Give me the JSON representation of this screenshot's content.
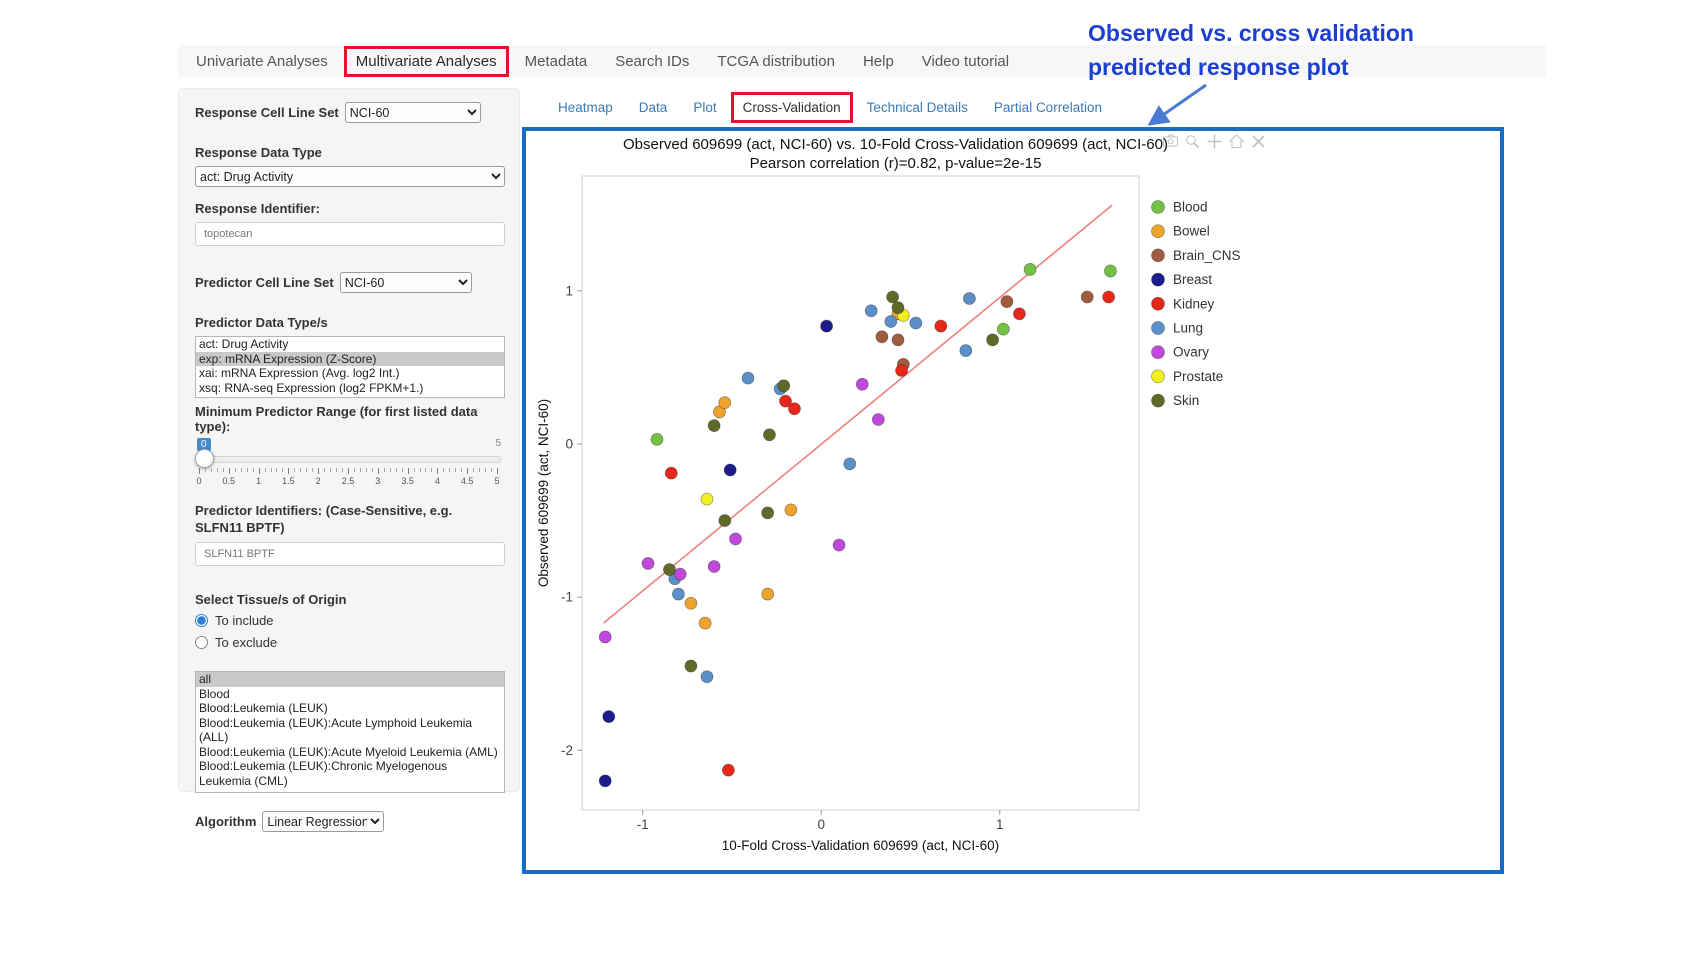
{
  "nav": {
    "items": [
      {
        "label": "Univariate Analyses",
        "active": false,
        "boxed": false
      },
      {
        "label": "Multivariate Analyses",
        "active": true,
        "boxed": true
      },
      {
        "label": "Metadata",
        "active": false,
        "boxed": false
      },
      {
        "label": "Search IDs",
        "active": false,
        "boxed": false
      },
      {
        "label": "TCGA distribution",
        "active": false,
        "boxed": false
      },
      {
        "label": "Help",
        "active": false,
        "boxed": false
      },
      {
        "label": "Video tutorial",
        "active": false,
        "boxed": false
      }
    ]
  },
  "annotation": {
    "line1": "Observed vs. cross validation",
    "line2": "predicted response plot",
    "color": "#1c3fd3",
    "arrow_color": "#4a7bd4"
  },
  "highlight": {
    "red_box_color": "#e8112d",
    "plot_box_color": "#1a6bc2"
  },
  "sidebar": {
    "response_cell_line_set": {
      "label": "Response Cell Line Set",
      "value": "NCI-60"
    },
    "response_data_type": {
      "label": "Response Data Type",
      "value": "act: Drug Activity"
    },
    "response_identifier": {
      "label": "Response Identifier:",
      "value": "topotecan"
    },
    "predictor_cell_line_set": {
      "label": "Predictor Cell Line Set",
      "value": "NCI-60"
    },
    "predictor_data_types": {
      "label": "Predictor Data Type/s",
      "options": [
        "act: Drug Activity",
        "exp: mRNA Expression (Z-Score)",
        "xai: mRNA Expression (Avg. log2 Int.)",
        "xsq: RNA-seq Expression (log2 FPKM+1.)"
      ],
      "selected": "exp: mRNA Expression (Z-Score)"
    },
    "min_predictor_range": {
      "label": "Minimum Predictor Range (for first listed data type):",
      "value": "0",
      "max": "5",
      "ticks": [
        "0",
        "0.5",
        "1",
        "1.5",
        "2",
        "2.5",
        "3",
        "3.5",
        "4",
        "4.5",
        "5"
      ]
    },
    "predictor_identifiers": {
      "label": "Predictor Identifiers: (Case-Sensitive, e.g. SLFN11 BPTF)",
      "value": "SLFN11 BPTF"
    },
    "tissue_origin": {
      "label": "Select Tissue/s of Origin",
      "options": [
        {
          "label": "To include",
          "selected": true
        },
        {
          "label": "To exclude",
          "selected": false
        }
      ]
    },
    "tissue_list": {
      "options": [
        "all",
        "Blood",
        "Blood:Leukemia (LEUK)",
        "Blood:Leukemia (LEUK):Acute Lymphoid Leukemia (ALL)",
        "Blood:Leukemia (LEUK):Acute Myeloid Leukemia (AML)",
        "Blood:Leukemia (LEUK):Chronic Myelogenous Leukemia (CML)"
      ],
      "selected": "all"
    },
    "algorithm": {
      "label": "Algorithm",
      "value": "Linear Regression"
    }
  },
  "subtabs": {
    "items": [
      {
        "label": "Heatmap",
        "active": false,
        "boxed": false
      },
      {
        "label": "Data",
        "active": false,
        "boxed": false
      },
      {
        "label": "Plot",
        "active": false,
        "boxed": false
      },
      {
        "label": "Cross-Validation",
        "active": true,
        "boxed": true
      },
      {
        "label": "Technical Details",
        "active": false,
        "boxed": false
      },
      {
        "label": "Partial Correlation",
        "active": false,
        "boxed": false
      }
    ]
  },
  "modebar": {
    "icons": [
      "camera",
      "zoom",
      "pan",
      "home",
      "close"
    ]
  },
  "chart_data": {
    "type": "scatter",
    "title": "Observed 609699 (act, NCI-60) vs. 10-Fold Cross-Validation 609699 (act, NCI-60)",
    "subtitle": "Pearson correlation (r)=0.82, p-value=2e-15",
    "xlabel": "10-Fold Cross-Validation 609699 (act, NCI-60)",
    "ylabel": "Observed 609699 (act, NCI-60)",
    "xlim": [
      -1.34,
      1.78
    ],
    "ylim": [
      -2.39,
      1.75
    ],
    "xticks": [
      -1,
      0,
      1
    ],
    "yticks": [
      -2,
      -1,
      0,
      1
    ],
    "grid": false,
    "legend_position": "right",
    "regression_line": {
      "x1": -1.22,
      "y1": -1.17,
      "x2": 1.63,
      "y2": 1.56,
      "color": "#f08080"
    },
    "series": [
      {
        "name": "Blood",
        "color": "#74c045",
        "points": [
          [
            -0.92,
            0.03
          ],
          [
            1.02,
            0.75
          ],
          [
            1.17,
            1.14
          ],
          [
            1.62,
            1.13
          ]
        ]
      },
      {
        "name": "Bowel",
        "color": "#eea32c",
        "points": [
          [
            -0.57,
            0.21
          ],
          [
            -0.54,
            0.27
          ],
          [
            -0.73,
            -1.04
          ],
          [
            -0.65,
            -1.17
          ],
          [
            -0.3,
            -0.98
          ],
          [
            -0.17,
            -0.43
          ],
          [
            0.43,
            0.85
          ]
        ]
      },
      {
        "name": "Brain_CNS",
        "color": "#a05c3f",
        "points": [
          [
            0.34,
            0.7
          ],
          [
            0.43,
            0.68
          ],
          [
            0.46,
            0.52
          ],
          [
            1.04,
            0.93
          ],
          [
            1.49,
            0.96
          ]
        ]
      },
      {
        "name": "Breast",
        "color": "#1c1c8a",
        "points": [
          [
            -0.51,
            -0.17
          ],
          [
            0.03,
            0.77
          ],
          [
            -1.19,
            -1.78
          ],
          [
            -1.21,
            -2.2
          ]
        ]
      },
      {
        "name": "Kidney",
        "color": "#e8271b",
        "points": [
          [
            -0.84,
            -0.19
          ],
          [
            -0.2,
            0.28
          ],
          [
            -0.15,
            0.23
          ],
          [
            0.45,
            0.48
          ],
          [
            0.67,
            0.77
          ],
          [
            1.11,
            0.85
          ],
          [
            1.61,
            0.96
          ],
          [
            -0.52,
            -2.13
          ]
        ]
      },
      {
        "name": "Lung",
        "color": "#5b8fc8",
        "points": [
          [
            -0.41,
            0.43
          ],
          [
            -0.23,
            0.36
          ],
          [
            0.28,
            0.87
          ],
          [
            0.39,
            0.8
          ],
          [
            0.53,
            0.79
          ],
          [
            0.83,
            0.95
          ],
          [
            0.81,
            0.61
          ],
          [
            0.16,
            -0.13
          ],
          [
            -0.82,
            -0.88
          ],
          [
            -0.8,
            -0.98
          ],
          [
            -0.64,
            -1.52
          ]
        ]
      },
      {
        "name": "Ovary",
        "color": "#be49dc",
        "points": [
          [
            -1.21,
            -1.26
          ],
          [
            -0.97,
            -0.78
          ],
          [
            -0.79,
            -0.85
          ],
          [
            -0.6,
            -0.8
          ],
          [
            -0.48,
            -0.62
          ],
          [
            0.1,
            -0.66
          ],
          [
            0.23,
            0.39
          ],
          [
            0.32,
            0.16
          ]
        ]
      },
      {
        "name": "Prostate",
        "color": "#f2ef1f",
        "points": [
          [
            -0.64,
            -0.36
          ],
          [
            0.46,
            0.84
          ]
        ]
      },
      {
        "name": "Skin",
        "color": "#5e6b28",
        "points": [
          [
            -0.85,
            -0.82
          ],
          [
            -0.73,
            -1.45
          ],
          [
            -0.6,
            0.12
          ],
          [
            -0.54,
            -0.5
          ],
          [
            -0.3,
            -0.45
          ],
          [
            -0.29,
            0.06
          ],
          [
            -0.21,
            0.38
          ],
          [
            0.4,
            0.96
          ],
          [
            0.43,
            0.89
          ],
          [
            0.96,
            0.68
          ]
        ]
      }
    ]
  }
}
